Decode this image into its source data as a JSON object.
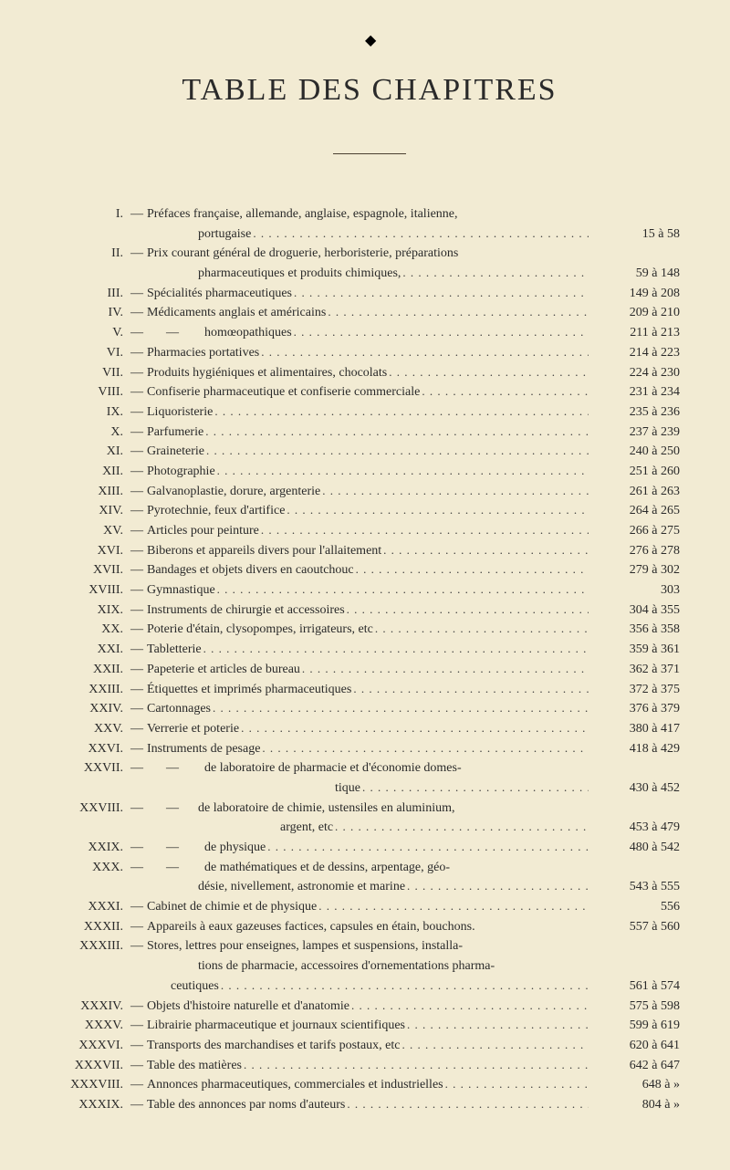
{
  "title": "TABLE DES CHAPITRES",
  "background_color": "#f2ebd3",
  "text_color": "#2a2a2a",
  "title_fontsize": 34,
  "body_fontsize": 14,
  "entries": [
    {
      "rn": "I.",
      "label": "Préfaces française, allemande, anglaise, espagnole, italienne,",
      "cont": "portugaise",
      "from": "15",
      "a": "à",
      "to": "58"
    },
    {
      "rn": "II.",
      "label": "Prix courant général de droguerie, herboristerie, préparations",
      "cont": "pharmaceutiques et produits chimiques,",
      "from": "59",
      "a": "à",
      "to": "148"
    },
    {
      "rn": "III.",
      "label": "Spécialités pharmaceutiques",
      "from": "149",
      "a": "à",
      "to": "208"
    },
    {
      "rn": "IV.",
      "label": "Médicaments anglais et américains",
      "from": "209",
      "a": "à",
      "to": "210"
    },
    {
      "rn": "V.",
      "label": "      —        homœopathiques",
      "from": "211",
      "a": "à",
      "to": "213"
    },
    {
      "rn": "VI.",
      "label": "Pharmacies portatives",
      "from": "214",
      "a": "à",
      "to": "223"
    },
    {
      "rn": "VII.",
      "label": "Produits hygiéniques et alimentaires, chocolats",
      "from": "224",
      "a": "à",
      "to": "230"
    },
    {
      "rn": "VIII.",
      "label": "Confiserie pharmaceutique et confiserie commerciale",
      "from": "231",
      "a": "à",
      "to": "234"
    },
    {
      "rn": "IX.",
      "label": "Liquoristerie",
      "from": "235",
      "a": "à",
      "to": "236"
    },
    {
      "rn": "X.",
      "label": "Parfumerie",
      "from": "237",
      "a": "à",
      "to": "239"
    },
    {
      "rn": "XI.",
      "label": "Graineterie",
      "from": "240",
      "a": "à",
      "to": "250"
    },
    {
      "rn": "XII.",
      "label": "Photographie",
      "from": "251",
      "a": "à",
      "to": "260"
    },
    {
      "rn": "XIII.",
      "label": "Galvanoplastie, dorure, argenterie",
      "from": "261",
      "a": "à",
      "to": "263"
    },
    {
      "rn": "XIV.",
      "label": "Pyrotechnie, feux d'artifice",
      "from": "264",
      "a": "à",
      "to": "265"
    },
    {
      "rn": "XV.",
      "label": "Articles pour peinture",
      "from": "266",
      "a": "à",
      "to": "275"
    },
    {
      "rn": "XVI.",
      "label": "Biberons et appareils divers pour l'allaitement",
      "from": "276",
      "a": "à",
      "to": "278"
    },
    {
      "rn": "XVII.",
      "label": "Bandages et objets divers en caoutchouc",
      "from": "279",
      "a": "à",
      "to": "302"
    },
    {
      "rn": "XVIII.",
      "label": "Gymnastique",
      "from": "",
      "a": "",
      "to": "303"
    },
    {
      "rn": "XIX.",
      "label": "Instruments de chirurgie et accessoires",
      "from": "304",
      "a": "à",
      "to": "355"
    },
    {
      "rn": "XX.",
      "label": "Poterie d'étain, clysopompes, irrigateurs, etc",
      "from": "356",
      "a": "à",
      "to": "358"
    },
    {
      "rn": "XXI.",
      "label": "Tabletterie",
      "from": "359",
      "a": "à",
      "to": "361"
    },
    {
      "rn": "XXII.",
      "label": "Papeterie et articles de bureau",
      "from": "362",
      "a": "à",
      "to": "371"
    },
    {
      "rn": "XXIII.",
      "label": "Étiquettes et imprimés pharmaceutiques",
      "from": "372",
      "a": "à",
      "to": "375"
    },
    {
      "rn": "XXIV.",
      "label": "Cartonnages",
      "from": "376",
      "a": "à",
      "to": "379"
    },
    {
      "rn": "XXV.",
      "label": "Verrerie et poterie",
      "from": "380",
      "a": "à",
      "to": "417"
    },
    {
      "rn": "XXVI.",
      "label": "Instruments de pesage",
      "from": "418",
      "a": "à",
      "to": "429"
    },
    {
      "rn": "XXVII.",
      "label": "      —        de laboratoire de pharmacie et d'économie domes-",
      "cont": "tique",
      "cont_indent": 210,
      "from": "430",
      "a": "à",
      "to": "452"
    },
    {
      "rn": "XXVIII.",
      "label": "      —      de laboratoire de chimie, ustensiles en aluminium,",
      "cont": "argent, etc",
      "cont_indent": 150,
      "from": "453",
      "a": "à",
      "to": "479"
    },
    {
      "rn": "XXIX.",
      "label": "      —        de physique",
      "from": "480",
      "a": "à",
      "to": "542"
    },
    {
      "rn": "XXX.",
      "label": "      —        de mathématiques et de dessins, arpentage, géo-",
      "cont": "désie, nivellement, astronomie et marine",
      "cont_indent": 60,
      "from": "543",
      "a": "à",
      "to": "555"
    },
    {
      "rn": "XXXI.",
      "label": "Cabinet de chimie et de physique",
      "from": "",
      "a": "",
      "to": "556"
    },
    {
      "rn": "XXXII.",
      "label": "Appareils à eaux gazeuses factices, capsules en étain, bouchons.",
      "from": "557",
      "a": "à",
      "to": "560",
      "no_dots": true
    },
    {
      "rn": "XXXIII.",
      "label": "Stores, lettres pour enseignes, lampes et suspensions, installa-",
      "cont": "tions de pharmacie, accessoires d'ornementations pharma-",
      "cont2": "ceutiques",
      "from": "561",
      "a": "à",
      "to": "574"
    },
    {
      "rn": "XXXIV.",
      "label": "Objets d'histoire naturelle et d'anatomie",
      "from": "575",
      "a": "à",
      "to": "598"
    },
    {
      "rn": "XXXV.",
      "label": "Librairie pharmaceutique et journaux scientifiques",
      "from": "599",
      "a": "à",
      "to": "619"
    },
    {
      "rn": "XXXVI.",
      "label": "Transports des marchandises et tarifs postaux, etc",
      "from": "620",
      "a": "à",
      "to": "641"
    },
    {
      "rn": "XXXVII.",
      "label": "Table des matières",
      "from": "642",
      "a": "à",
      "to": "647"
    },
    {
      "rn": "XXXVIII.",
      "label": "Annonces pharmaceutiques, commerciales et industrielles",
      "from": "648",
      "a": "à",
      "to": "»"
    },
    {
      "rn": "XXXIX.",
      "label": "Table des annonces par noms d'auteurs",
      "from": "804",
      "a": "à",
      "to": "»"
    }
  ]
}
